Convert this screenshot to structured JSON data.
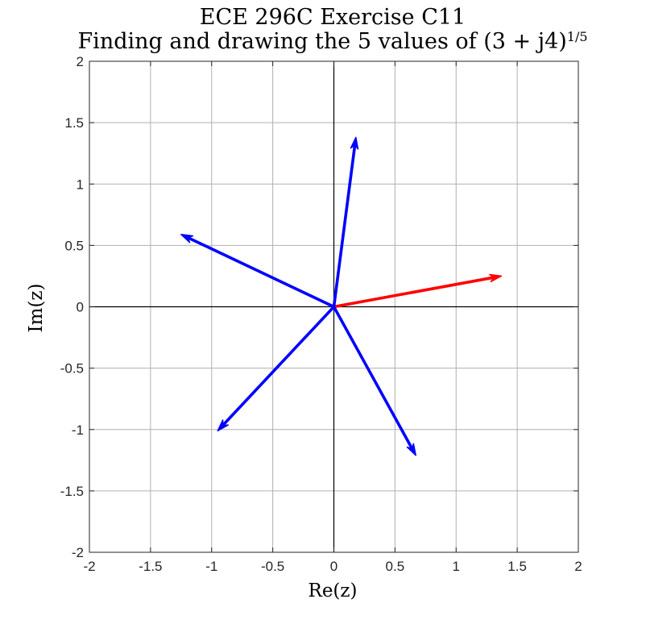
{
  "chart_data": {
    "type": "line",
    "title": "ECE 296C Exercise C11",
    "subtitle": "Finding and drawing the 5 values of (3 + j4)",
    "subtitle_exponent": "1/5",
    "xlabel": "Re(z)",
    "ylabel": "Im(z)",
    "xlim": [
      -2,
      2
    ],
    "ylim": [
      -2,
      2
    ],
    "xticks": [
      -2,
      -1.5,
      -1,
      -0.5,
      0,
      0.5,
      1,
      1.5,
      2
    ],
    "yticks": [
      -2,
      -1.5,
      -1,
      -0.5,
      0,
      0.5,
      1,
      1.5,
      2
    ],
    "xtick_labels": [
      "-2",
      "-1.5",
      "-1",
      "-0.5",
      "0",
      "0.5",
      "1",
      "1.5",
      "2"
    ],
    "ytick_labels": [
      "-2",
      "-1.5",
      "-1",
      "-0.5",
      "0",
      "0.5",
      "1",
      "1.5",
      "2"
    ],
    "grid": true,
    "vectors": [
      {
        "x": 1.37,
        "y": 0.25,
        "color": "#ff0000"
      },
      {
        "x": 0.18,
        "y": 1.38,
        "color": "#0000ff"
      },
      {
        "x": -1.25,
        "y": 0.59,
        "color": "#0000ff"
      },
      {
        "x": -0.95,
        "y": -1.01,
        "color": "#0000ff"
      },
      {
        "x": 0.67,
        "y": -1.21,
        "color": "#0000ff"
      }
    ]
  }
}
